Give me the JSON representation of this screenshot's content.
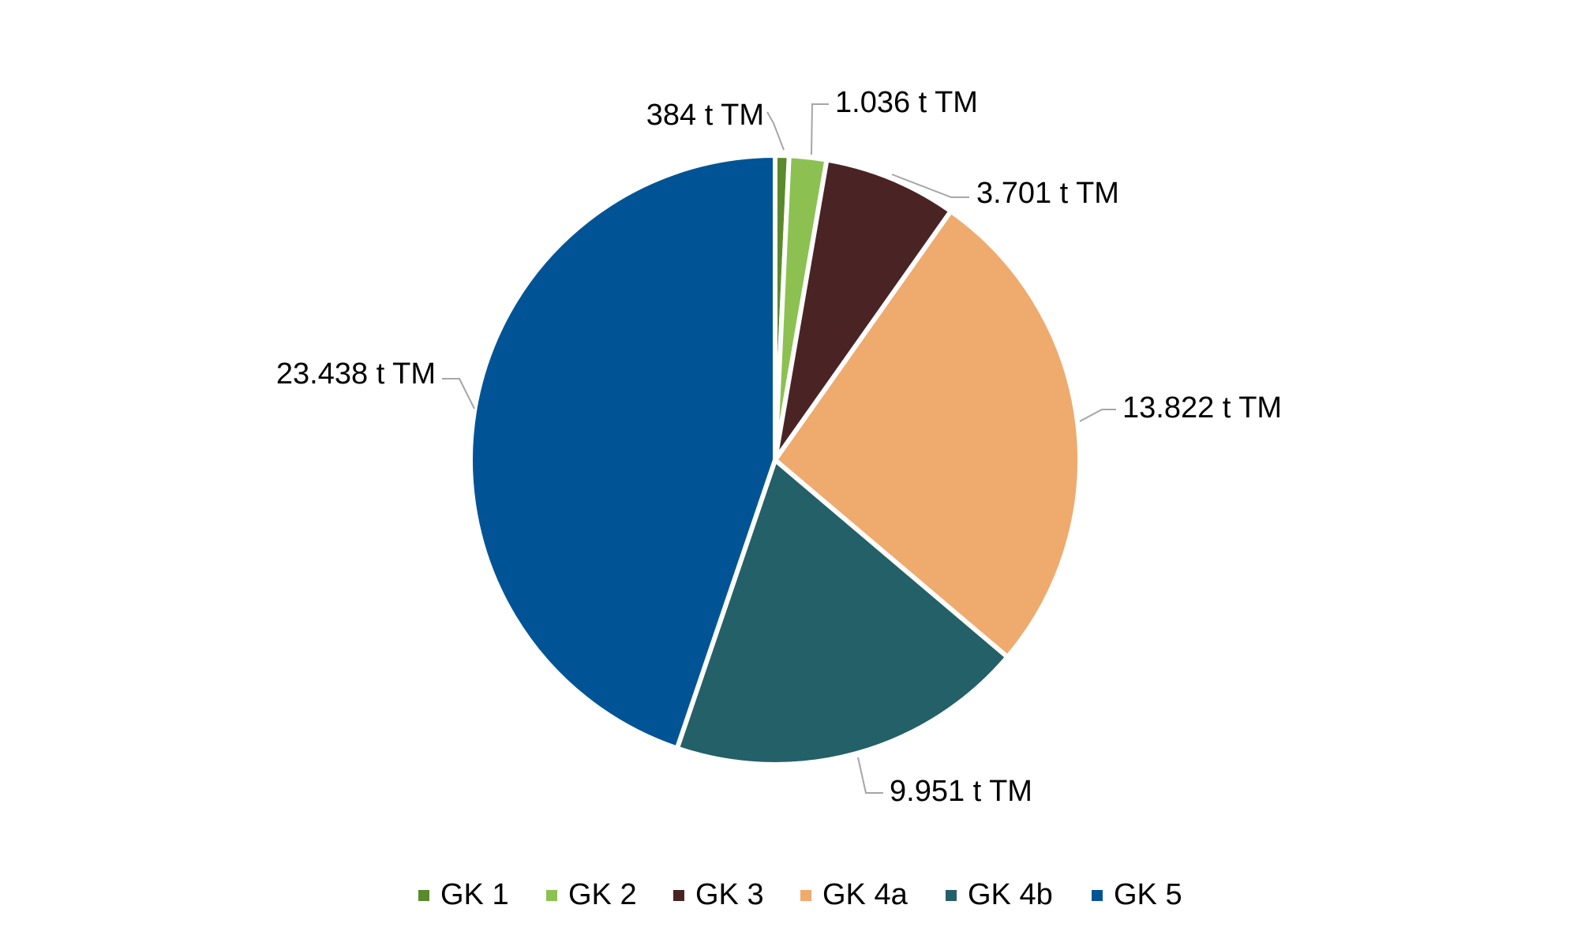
{
  "chart_data": {
    "type": "pie",
    "title": "",
    "unit_suffix": " t TM",
    "slices": [
      {
        "name": "GK 1",
        "value": 384,
        "label": "384 t TM",
        "color": "#5B8A2E"
      },
      {
        "name": "GK 2",
        "value": 1036,
        "label": "1.036 t TM",
        "color": "#8CC152"
      },
      {
        "name": "GK 3",
        "value": 3701,
        "label": "3.701 t TM",
        "color": "#4A2424"
      },
      {
        "name": "GK 4a",
        "value": 13822,
        "label": "13.822 t TM",
        "color": "#EFAA6E"
      },
      {
        "name": "GK 4b",
        "value": 9951,
        "label": "9.951 t TM",
        "color": "#246068"
      },
      {
        "name": "GK 5",
        "value": 23438,
        "label": "23.438 t TM",
        "color": "#005496"
      }
    ],
    "start_angle_deg": 0,
    "direction": "clockwise",
    "legend_position": "bottom",
    "leader_line_color": "#A6A6A6"
  }
}
